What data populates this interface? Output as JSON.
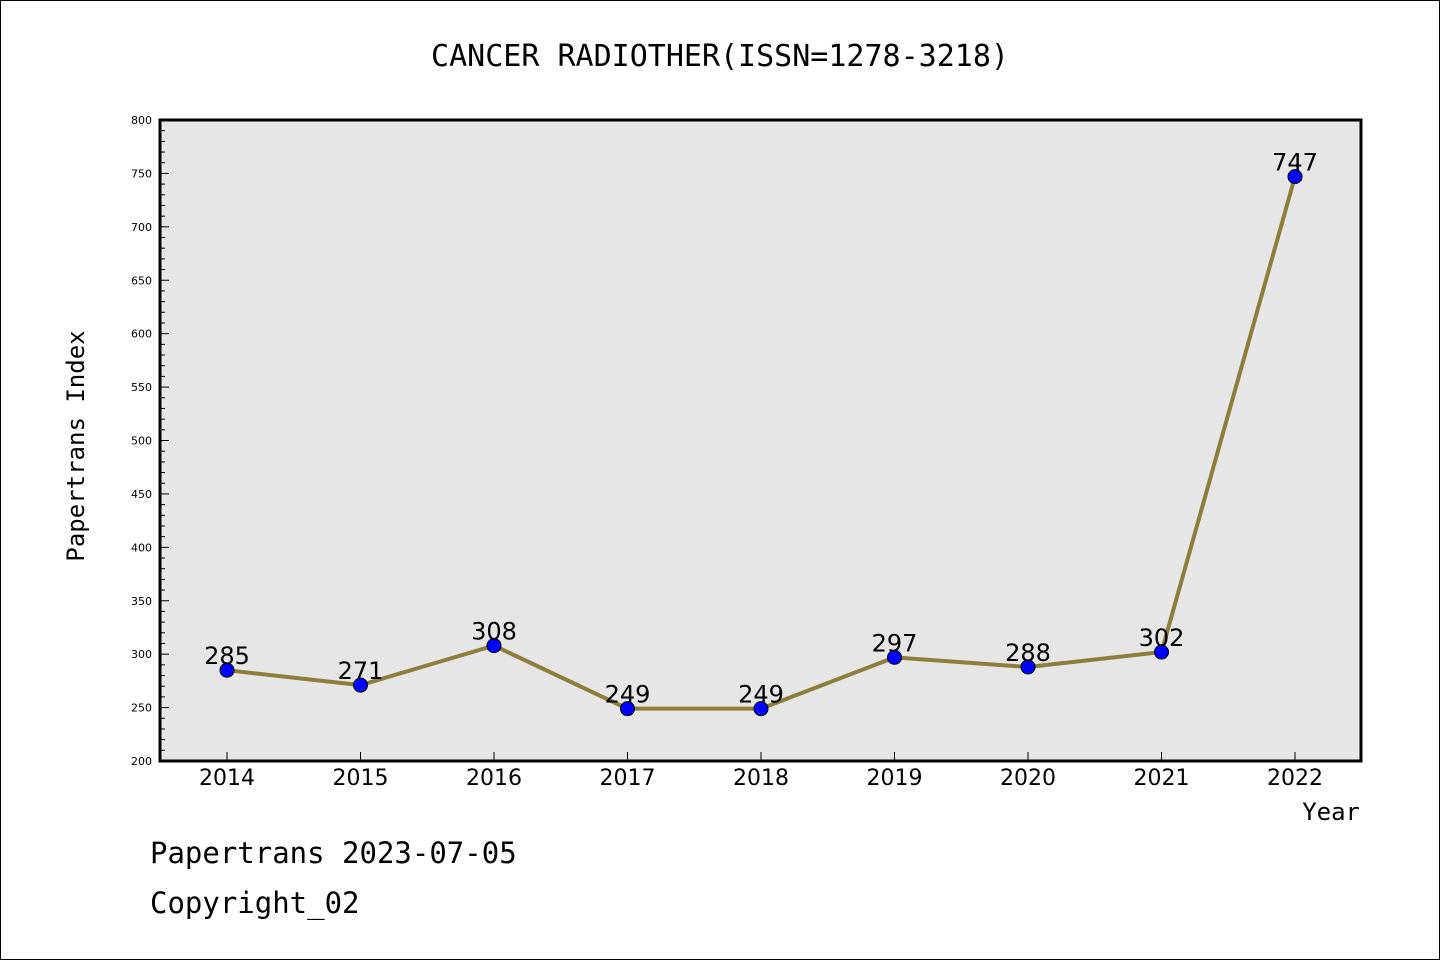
{
  "chart_data": {
    "type": "line",
    "title": "CANCER RADIOTHER(ISSN=1278-3218)",
    "xlabel": "Year",
    "ylabel": "Papertrans Index",
    "categories": [
      "2014",
      "2015",
      "2016",
      "2017",
      "2018",
      "2019",
      "2020",
      "2021",
      "2022"
    ],
    "series": [
      {
        "values": [
          285,
          271,
          308,
          249,
          249,
          297,
          288,
          302,
          747
        ]
      }
    ],
    "data_labels": [
      "285",
      "271",
      "308",
      "249",
      "249",
      "297",
      "288",
      "302",
      "747"
    ],
    "ylim": [
      200,
      800
    ],
    "yticks": [
      200,
      250,
      300,
      350,
      400,
      450,
      500,
      550,
      600,
      650,
      700,
      750,
      800
    ],
    "grid": false,
    "colors": {
      "line": "#8b7d3a",
      "marker": "#0000ff",
      "plot_background": "#e6e6e6"
    }
  },
  "footer": {
    "line1": "Papertrans 2023-07-05",
    "line2": "Copyright_02"
  }
}
